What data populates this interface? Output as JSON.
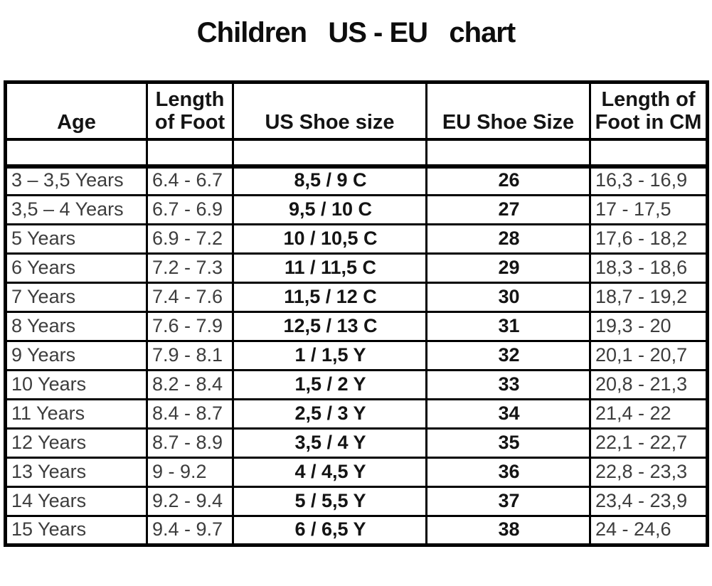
{
  "colors": {
    "border": "#000000",
    "text": "#3d3d3d",
    "emphasis": "#141414",
    "background": "#ffffff"
  },
  "chart_data": {
    "type": "table",
    "title": "Children   US - EU   chart",
    "columns": [
      "Age",
      "Length\nof Foot",
      "US Shoe size",
      "EU Shoe Size",
      "Length of\nFoot in CM"
    ],
    "column_keys": [
      "age",
      "foot-length-inch",
      "us-shoe-size",
      "eu-shoe-size",
      "foot-length-cm"
    ],
    "rows": [
      [
        "3 – 3,5 Years",
        "6.4 - 6.7",
        "8,5 / 9 C",
        "26",
        "16,3 - 16,9"
      ],
      [
        "3,5 – 4 Years",
        "6.7 - 6.9",
        "9,5 / 10 C",
        "27",
        "17 - 17,5"
      ],
      [
        "5 Years",
        "6.9 - 7.2",
        "10 / 10,5 C",
        "28",
        "17,6 - 18,2"
      ],
      [
        "6 Years",
        "7.2 - 7.3",
        "11 / 11,5 C",
        "29",
        "18,3 - 18,6"
      ],
      [
        "7 Years",
        "7.4 - 7.6",
        "11,5 / 12 C",
        "30",
        "18,7 - 19,2"
      ],
      [
        "8 Years",
        "7.6 - 7.9",
        "12,5 / 13 C",
        "31",
        "19,3 - 20"
      ],
      [
        "9 Years",
        "7.9 - 8.1",
        "1 / 1,5 Y",
        "32",
        "20,1 - 20,7"
      ],
      [
        "10 Years",
        "8.2 - 8.4",
        "1,5 / 2 Y",
        "33",
        "20,8 - 21,3"
      ],
      [
        "11 Years",
        "8.4 - 8.7",
        "2,5 / 3 Y",
        "34",
        "21,4 - 22"
      ],
      [
        "12 Years",
        "8.7 - 8.9",
        "3,5 / 4 Y",
        "35",
        "22,1 - 22,7"
      ],
      [
        "13 Years",
        "9 - 9.2",
        "4 / 4,5 Y",
        "36",
        "22,8 - 23,3"
      ],
      [
        "14 Years",
        "9.2 - 9.4",
        "5 / 5,5 Y",
        "37",
        "23,4 - 23,9"
      ],
      [
        "15 Years",
        "9.4 - 9.7",
        "6 / 6,5 Y",
        "38",
        "24 - 24,6"
      ]
    ]
  }
}
